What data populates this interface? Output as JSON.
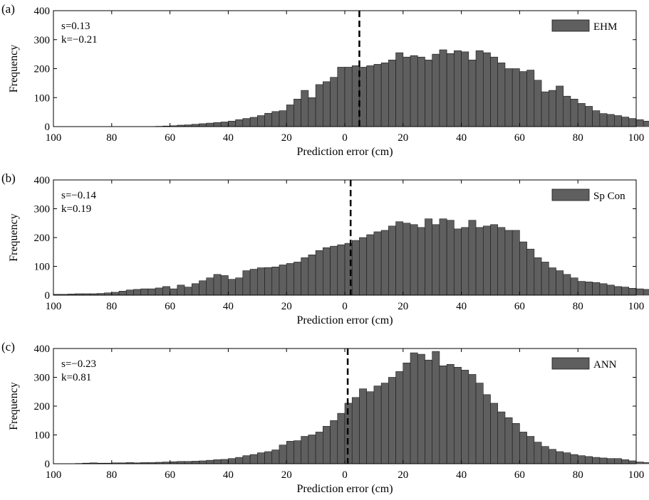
{
  "chart_data": [
    {
      "type": "bar",
      "panel_label": "(a)",
      "xlabel": "Prediction error (cm)",
      "ylabel": "Frequency",
      "xlim": [
        -100,
        100
      ],
      "ylim": [
        0,
        400
      ],
      "x_ticks": [
        "100",
        "80",
        "60",
        "40",
        "20",
        "0",
        "20",
        "40",
        "60",
        "80",
        "100"
      ],
      "y_ticks": [
        "0",
        "100",
        "200",
        "300",
        "400"
      ],
      "annotations": [
        "s=0.13",
        "k=−0.21"
      ],
      "series": [
        {
          "name": "EHM",
          "color": "#5f5f5f"
        }
      ],
      "legend_position": "top-right",
      "marker_line_x": 5,
      "bin_start": -100,
      "bin_width": 2.5,
      "values": [
        0,
        0,
        0,
        0,
        0,
        0,
        0,
        0,
        0,
        0,
        0,
        0,
        0,
        0,
        1,
        2,
        3,
        5,
        6,
        8,
        10,
        12,
        14,
        16,
        19,
        24,
        28,
        32,
        38,
        46,
        52,
        55,
        75,
        95,
        125,
        100,
        145,
        155,
        170,
        205,
        205,
        210,
        205,
        210,
        215,
        220,
        230,
        255,
        240,
        245,
        240,
        230,
        250,
        265,
        252,
        262,
        258,
        230,
        262,
        255,
        240,
        220,
        200,
        200,
        190,
        195,
        160,
        120,
        125,
        140,
        105,
        95,
        80,
        70,
        55,
        45,
        42,
        38,
        33,
        28,
        24,
        19,
        15,
        12,
        10,
        8,
        6,
        5,
        4,
        3,
        2,
        2,
        1,
        1,
        0,
        0,
        0,
        0,
        0,
        0
      ]
    },
    {
      "type": "bar",
      "panel_label": "(b)",
      "xlabel": "Prediction error (cm)",
      "ylabel": "Frequency",
      "xlim": [
        -100,
        100
      ],
      "ylim": [
        0,
        400
      ],
      "x_ticks": [
        "100",
        "80",
        "60",
        "40",
        "20",
        "0",
        "20",
        "40",
        "60",
        "80",
        "100"
      ],
      "y_ticks": [
        "0",
        "100",
        "200",
        "300",
        "400"
      ],
      "annotations": [
        "s=−0.14",
        "k=0.19"
      ],
      "series": [
        {
          "name": "Sp Con",
          "color": "#5f5f5f"
        }
      ],
      "legend_position": "top-right",
      "marker_line_x": 2,
      "bin_start": -100,
      "bin_width": 2.5,
      "values": [
        3,
        3,
        4,
        5,
        5,
        5,
        6,
        8,
        10,
        14,
        18,
        20,
        22,
        22,
        25,
        30,
        22,
        35,
        28,
        40,
        50,
        60,
        72,
        68,
        55,
        60,
        85,
        90,
        95,
        96,
        98,
        105,
        110,
        115,
        130,
        140,
        155,
        165,
        170,
        175,
        180,
        190,
        200,
        210,
        220,
        225,
        240,
        255,
        250,
        245,
        235,
        265,
        245,
        265,
        260,
        230,
        235,
        260,
        235,
        240,
        245,
        235,
        225,
        225,
        185,
        160,
        130,
        115,
        95,
        85,
        72,
        60,
        48,
        46,
        44,
        40,
        35,
        30,
        28,
        24,
        22,
        20,
        18,
        16,
        15,
        14,
        12,
        12,
        14,
        18,
        12,
        10,
        8,
        6,
        4,
        4,
        3,
        2,
        1,
        1
      ]
    },
    {
      "type": "bar",
      "panel_label": "(c)",
      "xlabel": "Prediction error (cm)",
      "ylabel": "Frequency",
      "xlim": [
        -100,
        100
      ],
      "ylim": [
        0,
        400
      ],
      "x_ticks": [
        "100",
        "80",
        "60",
        "40",
        "20",
        "0",
        "20",
        "40",
        "60",
        "80",
        "100"
      ],
      "y_ticks": [
        "0",
        "100",
        "200",
        "300",
        "400"
      ],
      "annotations": [
        "s=−0.23",
        "k=0.81"
      ],
      "series": [
        {
          "name": "ANN",
          "color": "#5f5f5f"
        }
      ],
      "legend_position": "top-right",
      "marker_line_x": 1,
      "bin_start": -100,
      "bin_width": 2.5,
      "values": [
        0,
        0,
        0,
        1,
        2,
        3,
        2,
        2,
        3,
        3,
        4,
        3,
        4,
        4,
        5,
        6,
        7,
        8,
        8,
        9,
        10,
        12,
        14,
        15,
        18,
        22,
        28,
        32,
        38,
        42,
        48,
        65,
        78,
        80,
        95,
        100,
        110,
        130,
        150,
        175,
        210,
        230,
        260,
        250,
        270,
        280,
        300,
        320,
        350,
        385,
        380,
        360,
        390,
        340,
        345,
        335,
        325,
        310,
        280,
        240,
        210,
        180,
        160,
        140,
        110,
        95,
        75,
        60,
        50,
        42,
        38,
        32,
        28,
        25,
        22,
        20,
        18,
        18,
        14,
        10,
        6,
        4,
        3,
        2,
        2,
        1,
        1,
        1,
        0,
        0,
        0,
        0,
        0,
        0,
        0,
        0,
        0,
        0,
        0,
        0
      ]
    }
  ]
}
